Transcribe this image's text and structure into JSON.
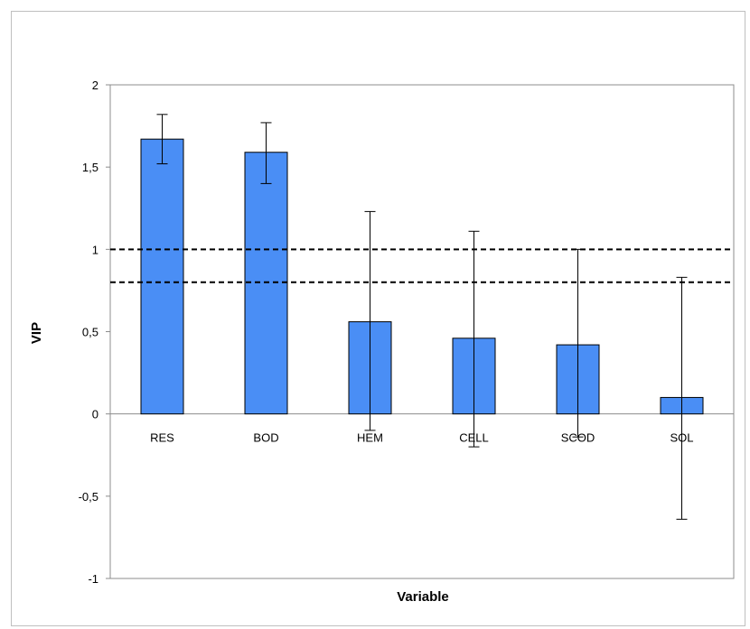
{
  "chart_data": {
    "type": "bar",
    "title": "",
    "xlabel": "Variable",
    "ylabel": "VIP",
    "categories": [
      "RES",
      "BOD",
      "HEM",
      "CELL",
      "SCOD",
      "SOL"
    ],
    "values": [
      1.67,
      1.59,
      0.56,
      0.46,
      0.42,
      0.1
    ],
    "error_low": [
      1.52,
      1.4,
      -0.1,
      -0.2,
      -0.14,
      -0.64
    ],
    "error_high": [
      1.82,
      1.77,
      1.23,
      1.11,
      1.0,
      0.83
    ],
    "ylim": [
      -1,
      2
    ],
    "y_ticks": [
      "2",
      "1,5",
      "1",
      "0,5",
      "0",
      "-0,5",
      "-1"
    ],
    "y_tick_values": [
      2,
      1.5,
      1,
      0.5,
      0,
      -0.5,
      -1
    ],
    "reference_lines": [
      1,
      0.8
    ],
    "grid": false,
    "legend": "none",
    "colors": {
      "bar_fill": "#4a8ef5",
      "bar_stroke": "#000000",
      "reference_line": "#000000",
      "axis": "#8c8c8c"
    }
  }
}
